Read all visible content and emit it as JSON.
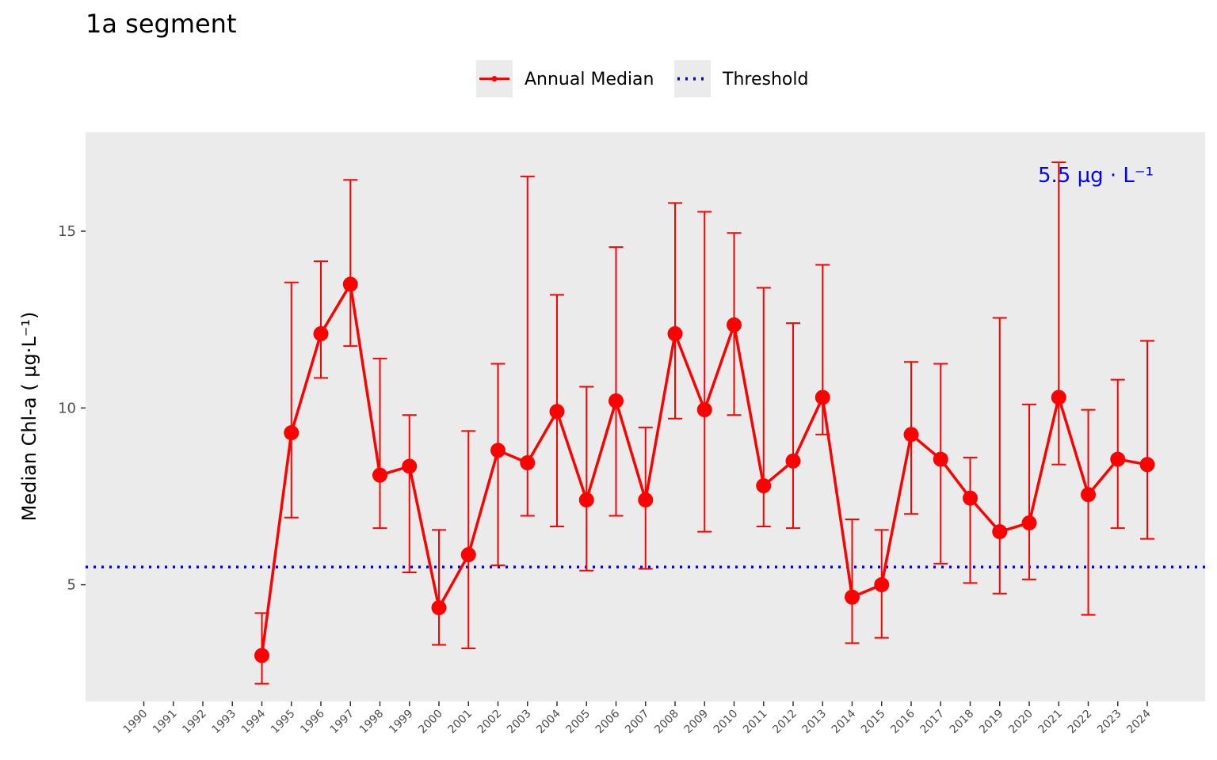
{
  "chart_data": {
    "type": "line",
    "title": "1a segment",
    "ylabel": "Median Chl-a ( µg·L⁻¹)",
    "xlabel": "",
    "ylim": [
      1.7,
      17.8
    ],
    "yticks": [
      5,
      10,
      15
    ],
    "ytick_labels": [
      "5",
      "10",
      "15"
    ],
    "categories": [
      "1990",
      "1991",
      "1992",
      "1993",
      "1994",
      "1995",
      "1996",
      "1997",
      "1998",
      "1999",
      "2000",
      "2001",
      "2002",
      "2003",
      "2004",
      "2005",
      "2006",
      "2007",
      "2008",
      "2009",
      "2010",
      "2011",
      "2012",
      "2013",
      "2014",
      "2015",
      "2016",
      "2017",
      "2018",
      "2019",
      "2020",
      "2021",
      "2022",
      "2023",
      "2024"
    ],
    "series": [
      {
        "name": "Annual Median",
        "color": "#ff0000",
        "values": [
          null,
          null,
          null,
          null,
          3.0,
          9.3,
          12.1,
          13.5,
          8.1,
          8.35,
          4.35,
          5.85,
          8.8,
          8.45,
          9.9,
          7.4,
          10.2,
          7.4,
          12.1,
          9.95,
          12.35,
          7.8,
          8.5,
          10.3,
          4.65,
          5.0,
          9.25,
          8.55,
          7.45,
          6.5,
          6.75,
          10.3,
          7.55,
          8.55,
          8.4
        ],
        "lower": [
          null,
          null,
          null,
          null,
          2.2,
          6.9,
          10.85,
          11.75,
          6.6,
          5.35,
          3.3,
          3.2,
          5.55,
          6.95,
          6.65,
          5.4,
          6.95,
          5.45,
          9.7,
          6.5,
          9.8,
          6.65,
          6.6,
          9.25,
          3.35,
          3.5,
          7.0,
          5.6,
          5.05,
          4.75,
          5.15,
          8.4,
          4.15,
          6.6,
          6.3
        ],
        "upper": [
          null,
          null,
          null,
          null,
          4.2,
          13.55,
          14.15,
          16.45,
          11.4,
          9.8,
          6.55,
          9.35,
          11.25,
          16.55,
          13.2,
          10.6,
          14.55,
          9.45,
          15.8,
          15.55,
          14.95,
          13.4,
          12.4,
          14.05,
          6.85,
          6.55,
          11.3,
          11.25,
          8.6,
          12.55,
          10.1,
          16.95,
          9.95,
          10.8,
          11.9
        ]
      }
    ],
    "threshold": {
      "name": "Threshold",
      "value": 5.5,
      "color": "#0000ff",
      "label": "5.5 µg · L⁻¹"
    },
    "grid": false,
    "legend": "top"
  }
}
